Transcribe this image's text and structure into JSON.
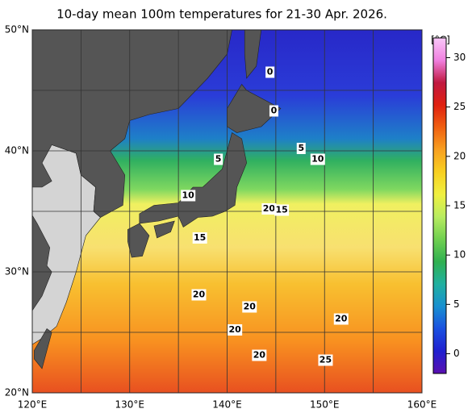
{
  "title": "10-day mean 100m temperatures for 21-30 Apr. 2026.",
  "map": {
    "xlim": [
      120,
      160
    ],
    "ylim": [
      20,
      50
    ],
    "xticks": [
      {
        "value": 120,
        "label": "120°E"
      },
      {
        "value": 130,
        "label": "130°E"
      },
      {
        "value": 140,
        "label": "140°E"
      },
      {
        "value": 150,
        "label": "150°E"
      },
      {
        "value": 160,
        "label": "160°E"
      }
    ],
    "yticks": [
      {
        "value": 20,
        "label": "20°N"
      },
      {
        "value": 30,
        "label": "30°N"
      },
      {
        "value": 40,
        "label": "40°N"
      },
      {
        "value": 50,
        "label": "50°N"
      }
    ],
    "minor_xticks": [
      125,
      135,
      145,
      155
    ],
    "minor_yticks": [
      25,
      35,
      45
    ],
    "contour_labels": [
      {
        "value": 0,
        "lon": 144.4,
        "lat": 46.5
      },
      {
        "value": 0,
        "lon": 144.8,
        "lat": 43.3
      },
      {
        "value": 5,
        "lon": 139.1,
        "lat": 39.3
      },
      {
        "value": 5,
        "lon": 147.6,
        "lat": 40.2
      },
      {
        "value": 10,
        "lon": 149.3,
        "lat": 39.3
      },
      {
        "value": 10,
        "lon": 136.0,
        "lat": 36.3
      },
      {
        "value": 20,
        "lon": 144.3,
        "lat": 35.2
      },
      {
        "value": 15,
        "lon": 145.6,
        "lat": 35.1
      },
      {
        "value": 15,
        "lon": 137.2,
        "lat": 32.8
      },
      {
        "value": 20,
        "lon": 137.1,
        "lat": 28.1
      },
      {
        "value": 20,
        "lon": 142.3,
        "lat": 27.1
      },
      {
        "value": 20,
        "lon": 140.8,
        "lat": 25.2
      },
      {
        "value": 20,
        "lon": 151.7,
        "lat": 26.1
      },
      {
        "value": 20,
        "lon": 143.3,
        "lat": 23.1
      },
      {
        "value": 25,
        "lon": 150.1,
        "lat": 22.7
      }
    ]
  },
  "colorbar": {
    "unit": "[°C]",
    "clim": [
      -2,
      32
    ],
    "ticks": [
      0,
      5,
      10,
      15,
      20,
      25,
      30
    ],
    "colormap": [
      "#5a10b0",
      "#2020d0",
      "#1a50e0",
      "#1890d0",
      "#20b0a0",
      "#30b050",
      "#70d050",
      "#b8ec60",
      "#f0f040",
      "#f8d020",
      "#f8a020",
      "#f06010",
      "#e02010",
      "#c01840",
      "#f080e0",
      "#f8c8f8"
    ]
  }
}
